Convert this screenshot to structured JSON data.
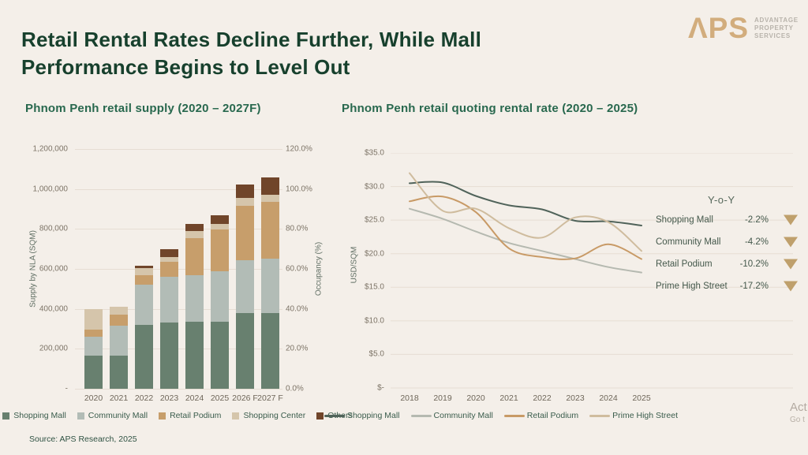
{
  "page": {
    "background": "#f4efe9"
  },
  "header": {
    "title": "Retail Rental Rates Decline Further, While Mall Performance Begins to Level Out"
  },
  "logo": {
    "mark": "ΛPS",
    "tagline_lines": [
      "ADVANTAGE",
      "PROPERTY",
      "SERVICES"
    ],
    "mark_color": "#d2ad7d",
    "tagline_color": "#b8b3ab"
  },
  "yoy": {
    "title": "Y-o-Y",
    "arrow_color": "#bfa06c",
    "rows": [
      {
        "label": "Shopping Mall",
        "value": "-2.2%",
        "direction": "down"
      },
      {
        "label": "Community Mall",
        "value": "-4.2%",
        "direction": "down"
      },
      {
        "label": "Retail Podium",
        "value": "-10.2%",
        "direction": "down"
      },
      {
        "label": "Prime High Street",
        "value": "-17.2%",
        "direction": "down"
      }
    ]
  },
  "source": "Source: APS Research, 2025",
  "watermark": {
    "line1": "Act",
    "line2": "Go t"
  },
  "chart_data": [
    {
      "type": "bar",
      "stacked": true,
      "title": "Phnom Penh retail supply (2020 – 2027F)",
      "categories": [
        "2020",
        "2021",
        "2022",
        "2023",
        "2024",
        "2025",
        "2026 F",
        "2027 F"
      ],
      "series": [
        {
          "name": "Shopping Mall",
          "color": "#68806f",
          "values": [
            165000,
            165000,
            320000,
            332000,
            335000,
            337000,
            378000,
            380000
          ]
        },
        {
          "name": "Community Mall",
          "color": "#b2bcb6",
          "values": [
            95000,
            150000,
            200000,
            228000,
            234000,
            251000,
            265000,
            270000
          ]
        },
        {
          "name": "Retail Podium",
          "color": "#c79e6b",
          "values": [
            35000,
            55000,
            50000,
            75000,
            184000,
            208000,
            271000,
            287000
          ]
        },
        {
          "name": "Shopping Center",
          "color": "#d5c5ab",
          "values": [
            105000,
            40000,
            35000,
            25000,
            35000,
            31000,
            43000,
            35000
          ]
        },
        {
          "name": "Others",
          "color": "#70452a",
          "values": [
            0,
            0,
            10000,
            38000,
            39000,
            40000,
            67000,
            85000
          ]
        }
      ],
      "ylabel": "Supply by NLA (SQM)",
      "y2label": "Occupancy (%)",
      "yticks": [
        "1,200,000",
        "1,000,000",
        "800,000",
        "600,000",
        "400,000",
        "200,000",
        "-"
      ],
      "y2ticks": [
        "120.0%",
        "100.0%",
        "80.0%",
        "60.0%",
        "40.0%",
        "20.0%",
        "0.0%"
      ],
      "ylim": [
        0,
        1200000
      ],
      "grid": true,
      "legend_position": "bottom"
    },
    {
      "type": "line",
      "title": "Phnom Penh retail quoting rental rate (2020 – 2025)",
      "x": [
        2018,
        2019,
        2020,
        2021,
        2022,
        2023,
        2024,
        2025
      ],
      "series": [
        {
          "name": "Shopping Mall",
          "color": "#50635a",
          "values": [
            30.5,
            30.6,
            28.6,
            27.2,
            26.6,
            24.9,
            24.8,
            24.2
          ]
        },
        {
          "name": "Community Mall",
          "color": "#b5b9b0",
          "values": [
            26.7,
            25.2,
            23.3,
            21.6,
            20.4,
            19.2,
            18.0,
            17.2
          ]
        },
        {
          "name": "Retail Podium",
          "color": "#c89a66",
          "values": [
            27.8,
            28.5,
            26.2,
            20.8,
            19.5,
            19.3,
            21.4,
            19.2
          ]
        },
        {
          "name": "Prime High Street",
          "color": "#cfbc9e",
          "values": [
            32.0,
            26.4,
            26.7,
            23.8,
            22.4,
            25.4,
            24.7,
            20.4
          ]
        }
      ],
      "ylabel": "USD/SQM",
      "yticks": [
        "$35.0",
        "$30.0",
        "$25.0",
        "$20.0",
        "$15.0",
        "$10.0",
        "$5.0",
        "$-"
      ],
      "ylim": [
        0,
        35
      ],
      "grid": true,
      "legend_position": "bottom"
    }
  ]
}
